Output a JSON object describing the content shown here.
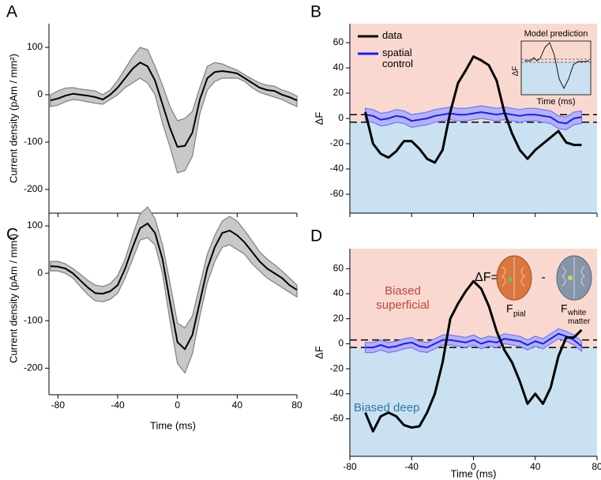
{
  "chart_data": [
    {
      "type": "line",
      "panel_label": "A",
      "ylabel": "Current density (pAm / mm²)",
      "xlim": [
        -86,
        80
      ],
      "ylim": [
        -250,
        150
      ],
      "xticks": [
        -80,
        -40,
        0,
        40,
        80
      ],
      "yticks": [
        100,
        0,
        -100,
        -200
      ],
      "show_xtick_labels": false,
      "x": [
        -85,
        -80,
        -75,
        -70,
        -65,
        -60,
        -55,
        -50,
        -45,
        -40,
        -35,
        -30,
        -25,
        -20,
        -15,
        -10,
        -5,
        0,
        5,
        10,
        15,
        20,
        25,
        30,
        35,
        40,
        45,
        50,
        55,
        60,
        65,
        70,
        75,
        80
      ],
      "series": [
        {
          "color": "#000000",
          "band_color": "#c8c8c8",
          "band_edge": "#7f7f7f",
          "values": [
            -12,
            -8,
            -2,
            2,
            0,
            -2,
            -5,
            -10,
            0,
            15,
            35,
            55,
            68,
            60,
            30,
            -20,
            -70,
            -110,
            -108,
            -80,
            -10,
            35,
            48,
            50,
            48,
            45,
            35,
            25,
            15,
            10,
            8,
            0,
            -5,
            -12
          ],
          "band_upper": [
            0,
            8,
            14,
            15,
            12,
            10,
            8,
            0,
            10,
            30,
            55,
            80,
            100,
            95,
            60,
            20,
            -25,
            -55,
            -50,
            -35,
            15,
            60,
            68,
            65,
            58,
            52,
            42,
            33,
            25,
            20,
            18,
            10,
            5,
            -3
          ],
          "band_lower": [
            -25,
            -22,
            -15,
            -10,
            -12,
            -15,
            -18,
            -20,
            -10,
            0,
            15,
            25,
            35,
            25,
            0,
            -60,
            -110,
            -165,
            -160,
            -130,
            -40,
            10,
            28,
            35,
            35,
            35,
            28,
            15,
            5,
            0,
            -5,
            -10,
            -18,
            -25
          ]
        }
      ]
    },
    {
      "type": "line",
      "panel_label": "B",
      "ylabel": "ΔF",
      "xlim": [
        -80,
        80
      ],
      "ylim": [
        -75,
        75
      ],
      "xticks": [
        -80,
        -40,
        0,
        40,
        80
      ],
      "yticks": [
        60,
        40,
        20,
        0,
        -20,
        -40,
        -60
      ],
      "show_xtick_labels": false,
      "background": {
        "above": "#f9d9cf",
        "below": "#c9e1f1"
      },
      "hlines": [
        3,
        -3
      ],
      "legend": "top-left",
      "inset": {
        "title": "Model prediction",
        "ylabel": "ΔF",
        "xlabel": "Time (ms)"
      },
      "x": [
        -70,
        -65,
        -60,
        -55,
        -50,
        -45,
        -40,
        -35,
        -30,
        -25,
        -20,
        -15,
        -10,
        -5,
        0,
        5,
        10,
        15,
        20,
        25,
        30,
        35,
        40,
        45,
        50,
        55,
        60,
        65,
        70
      ],
      "series": [
        {
          "name": "data",
          "color": "#000000",
          "values": [
            5,
            -20,
            -28,
            -31,
            -26,
            -18,
            -18,
            -24,
            -32,
            -35,
            -25,
            5,
            28,
            38,
            49,
            46,
            42,
            30,
            5,
            -12,
            -25,
            -32,
            -25,
            -20,
            -15,
            -10,
            -19,
            -21,
            -21
          ]
        },
        {
          "name": "spatial control",
          "color": "#1a1aff",
          "band_color": "#b3b3f7",
          "band_edge": "#7373ff",
          "values": [
            3,
            2,
            -1,
            0,
            2,
            1,
            -2,
            -1,
            0,
            2,
            3,
            4,
            3,
            3,
            4,
            5,
            4,
            3,
            4,
            3,
            2,
            3,
            3,
            2,
            1,
            -3,
            -4,
            0,
            1
          ],
          "band_upper": [
            8,
            7,
            4,
            5,
            7,
            6,
            3,
            4,
            5,
            7,
            8,
            9,
            8,
            8,
            9,
            10,
            9,
            8,
            9,
            8,
            7,
            8,
            8,
            7,
            6,
            2,
            1,
            5,
            6
          ],
          "band_lower": [
            -2,
            -3,
            -6,
            -5,
            -3,
            -4,
            -7,
            -6,
            -5,
            -3,
            -2,
            -1,
            -2,
            -2,
            -1,
            0,
            -1,
            -2,
            -1,
            -2,
            -3,
            -2,
            -2,
            -3,
            -4,
            -8,
            -9,
            -5,
            -4
          ]
        }
      ]
    },
    {
      "type": "line",
      "panel_label": "C",
      "ylabel": "Current density (pAm / mm²)",
      "xlabel": "Time (ms)",
      "xlim": [
        -86,
        80
      ],
      "ylim": [
        -256,
        150
      ],
      "xticks": [
        -80,
        -40,
        0,
        40,
        80
      ],
      "yticks": [
        100,
        0,
        -100,
        -200
      ],
      "show_xtick_labels": true,
      "x": [
        -85,
        -80,
        -75,
        -70,
        -65,
        -60,
        -55,
        -50,
        -45,
        -40,
        -35,
        -30,
        -25,
        -20,
        -15,
        -10,
        -5,
        0,
        5,
        10,
        15,
        20,
        25,
        30,
        35,
        40,
        45,
        50,
        55,
        60,
        65,
        70,
        75,
        80
      ],
      "series": [
        {
          "color": "#000000",
          "band_color": "#c8c8c8",
          "band_edge": "#7f7f7f",
          "values": [
            15,
            14,
            10,
            0,
            -15,
            -30,
            -42,
            -43,
            -38,
            -25,
            10,
            55,
            95,
            105,
            85,
            30,
            -60,
            -145,
            -160,
            -130,
            -60,
            10,
            55,
            85,
            90,
            80,
            65,
            45,
            25,
            10,
            0,
            -10,
            -25,
            -35
          ],
          "band_upper": [
            25,
            25,
            20,
            10,
            -2,
            -15,
            -25,
            -28,
            -22,
            -5,
            30,
            80,
            125,
            140,
            115,
            60,
            -20,
            -105,
            -115,
            -90,
            -25,
            40,
            80,
            110,
            120,
            110,
            90,
            68,
            45,
            30,
            18,
            5,
            -10,
            -25
          ],
          "band_lower": [
            5,
            5,
            0,
            -10,
            -28,
            -45,
            -58,
            -60,
            -55,
            -42,
            -10,
            30,
            70,
            75,
            60,
            0,
            -100,
            -190,
            -210,
            -170,
            -90,
            -20,
            25,
            55,
            60,
            50,
            40,
            20,
            5,
            -10,
            -20,
            -30,
            -40,
            -50
          ]
        }
      ]
    },
    {
      "type": "line",
      "panel_label": "D",
      "ylabel": "ΔF",
      "xlabel": "Time (ms)",
      "xlim": [
        -80,
        80
      ],
      "ylim": [
        -90,
        76
      ],
      "xticks": [
        -80,
        -40,
        0,
        40,
        80
      ],
      "yticks": [
        60,
        40,
        20,
        0,
        -20,
        -40,
        -60
      ],
      "show_xtick_labels": true,
      "background": {
        "above": "#f9d9cf",
        "below": "#c9e1f1"
      },
      "hlines": [
        3,
        -3
      ],
      "annotations": {
        "equation": "ΔF=",
        "minus": "-",
        "f_pial": "F",
        "pial": "pial",
        "f_white": "F",
        "white": "white matter",
        "superficial": "Biased superficial",
        "deep": "Biased deep"
      },
      "x": [
        -70,
        -65,
        -60,
        -55,
        -50,
        -45,
        -40,
        -35,
        -30,
        -25,
        -20,
        -15,
        -10,
        -5,
        0,
        5,
        10,
        15,
        20,
        25,
        30,
        35,
        40,
        45,
        50,
        55,
        60,
        65,
        70
      ],
      "series": [
        {
          "color": "#000000",
          "values": [
            -55,
            -70,
            -58,
            -55,
            -58,
            -65,
            -67,
            -66,
            -55,
            -40,
            -15,
            20,
            32,
            42,
            50,
            44,
            30,
            10,
            -5,
            -15,
            -30,
            -48,
            -40,
            -48,
            -35,
            -10,
            5,
            5,
            11
          ]
        },
        {
          "color": "#1a1aff",
          "band_color": "#b3b3f7",
          "band_edge": "#7373ff",
          "values": [
            -3,
            -3,
            -1,
            -3,
            -2,
            0,
            1,
            -2,
            -3,
            0,
            3,
            3,
            2,
            1,
            3,
            0,
            2,
            1,
            4,
            3,
            2,
            -1,
            2,
            0,
            4,
            8,
            6,
            3,
            -2
          ],
          "band_upper": [
            1,
            1,
            3,
            1,
            2,
            4,
            5,
            2,
            1,
            4,
            7,
            7,
            6,
            5,
            7,
            4,
            6,
            5,
            8,
            7,
            6,
            3,
            6,
            4,
            8,
            12,
            10,
            7,
            2
          ],
          "band_lower": [
            -7,
            -7,
            -5,
            -7,
            -6,
            -4,
            -3,
            -6,
            -7,
            -4,
            -1,
            -1,
            -2,
            -3,
            -1,
            -4,
            -2,
            -3,
            0,
            -1,
            -2,
            -5,
            -2,
            -4,
            0,
            4,
            2,
            -1,
            -6
          ]
        }
      ]
    }
  ]
}
